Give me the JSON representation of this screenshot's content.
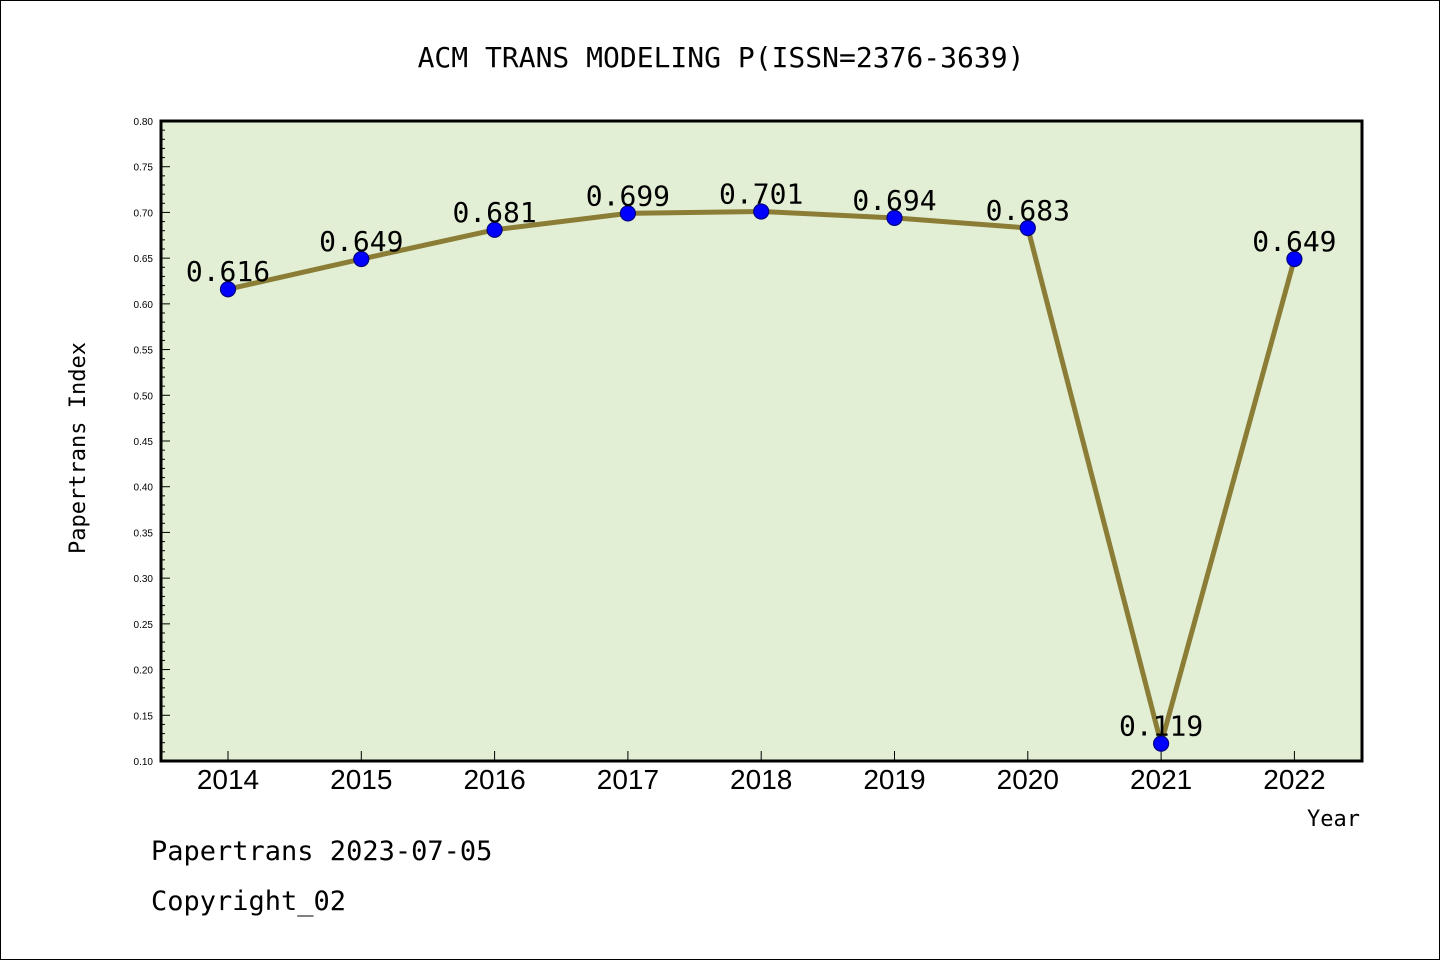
{
  "chart_data": {
    "type": "line",
    "title": "ACM TRANS MODELING P(ISSN=2376-3639)",
    "xlabel": "Year",
    "ylabel": "Papertrans Index",
    "categories": [
      "2014",
      "2015",
      "2016",
      "2017",
      "2018",
      "2019",
      "2020",
      "2021",
      "2022"
    ],
    "values": [
      0.616,
      0.649,
      0.681,
      0.699,
      0.701,
      0.694,
      0.683,
      0.119,
      0.649
    ],
    "data_labels": [
      "0.616",
      "0.649",
      "0.681",
      "0.699",
      "0.701",
      "0.694",
      "0.683",
      "0.119",
      "0.649"
    ],
    "yticks": [
      "0.10",
      "0.15",
      "0.20",
      "0.25",
      "0.30",
      "0.35",
      "0.40",
      "0.45",
      "0.50",
      "0.55",
      "0.60",
      "0.65",
      "0.70",
      "0.75",
      "0.80"
    ],
    "ylim": [
      0.1,
      0.8
    ],
    "grid": false,
    "colors": {
      "plot_background": "#e2efd5",
      "line": "#8b7d35",
      "marker_fill": "#0000ff",
      "marker_edge": "#000080"
    }
  },
  "footer": {
    "line1": "Papertrans 2023-07-05",
    "line2": "Copyright_02"
  }
}
